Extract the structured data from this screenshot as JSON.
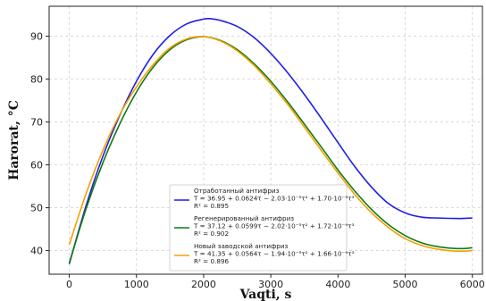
{
  "chart_data": {
    "type": "line",
    "xlabel": "Vaqti, s",
    "ylabel": "Harorat, °C",
    "xlim": [
      -300,
      6150
    ],
    "ylim": [
      34.5,
      97
    ],
    "x_ticks": [
      0,
      1000,
      2000,
      3000,
      4000,
      5000,
      6000
    ],
    "y_ticks": [
      40,
      50,
      60,
      70,
      80,
      90
    ],
    "grid": true,
    "legend_placement": "lower-center",
    "series": [
      {
        "name": "Отработанный антифриз",
        "color": "#1f1fe6",
        "formula": "T = 36.95 + 0.0624τ − 2.03·10⁻⁵τ² + 1.70·10⁻⁹τ³",
        "r2": "R² = 0.895",
        "x": [
          0,
          250,
          500,
          750,
          1000,
          1250,
          1500,
          1750,
          2000,
          2100,
          2250,
          2500,
          2750,
          3000,
          3250,
          3500,
          3750,
          4000,
          4250,
          4500,
          4750,
          5000,
          5250,
          5500,
          5750,
          5850,
          6000
        ],
        "y": [
          36.9,
          50.5,
          62.0,
          71.5,
          79.5,
          85.8,
          90.2,
          92.9,
          94.0,
          94.1,
          93.7,
          92.3,
          89.7,
          86.0,
          81.5,
          76.4,
          70.9,
          65.2,
          59.6,
          54.8,
          51.0,
          48.8,
          47.8,
          47.6,
          47.5,
          47.5,
          47.6
        ]
      },
      {
        "name": "Регенерированный антифриз",
        "color": "#117a11",
        "formula": "T = 37.12 + 0.0599τ − 2.02·10⁻⁵τ² + 1.72·10⁻⁹τ³",
        "r2": "R² = 0.902",
        "x": [
          0,
          250,
          500,
          750,
          1000,
          1250,
          1500,
          1750,
          2000,
          2250,
          2500,
          2750,
          3000,
          3250,
          3500,
          3750,
          4000,
          4250,
          4500,
          4750,
          5000,
          5250,
          5500,
          5750,
          5900,
          6000
        ],
        "y": [
          37.1,
          49.8,
          60.5,
          69.5,
          77.0,
          82.8,
          86.9,
          89.2,
          89.9,
          89.0,
          86.9,
          83.6,
          79.5,
          74.7,
          69.5,
          64.2,
          58.8,
          53.9,
          49.6,
          46.1,
          43.5,
          41.8,
          40.9,
          40.5,
          40.5,
          40.7
        ]
      },
      {
        "name": "Новый заводской антифриз",
        "color": "#f5a000",
        "formula": "T = 41.35 + 0.0564τ − 1.94·10⁻⁵τ² + 1.66·10⁻⁹τ³",
        "r2": "R² = 0.896",
        "x": [
          0,
          250,
          500,
          750,
          1000,
          1250,
          1500,
          1750,
          2000,
          2250,
          2500,
          2750,
          3000,
          3250,
          3500,
          3750,
          4000,
          4250,
          4500,
          4750,
          5000,
          5250,
          5500,
          5750,
          5900,
          6000
        ],
        "y": [
          41.4,
          53.3,
          63.4,
          71.7,
          78.2,
          83.4,
          87.3,
          89.4,
          89.9,
          88.9,
          86.6,
          83.2,
          78.9,
          74.1,
          68.8,
          63.4,
          58.1,
          53.1,
          48.8,
          45.4,
          42.8,
          41.2,
          40.3,
          39.9,
          39.9,
          40.0
        ]
      }
    ]
  }
}
